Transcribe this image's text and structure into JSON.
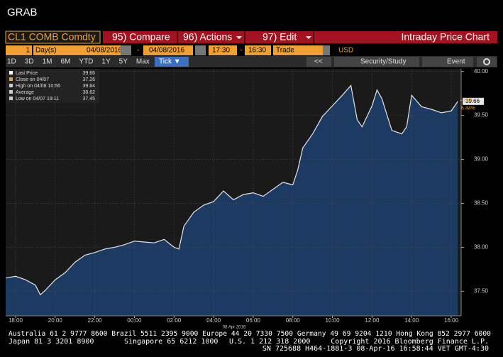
{
  "window_title": "GRAB",
  "toolbar": {
    "security": "CL1 COMB Comdty",
    "compare": "95) Compare",
    "actions": "96) Actions",
    "edit": "97) Edit",
    "chart_name": "Intraday Price Chart"
  },
  "settings": {
    "period": "1",
    "period_unit": "Day(s)",
    "start_date": "04/08/2016",
    "dash1": "-",
    "end_date": "04/08/2016",
    "start_time": "17:30",
    "dash2": "-",
    "end_time": "16:30",
    "event": "Trade",
    "currency": "USD"
  },
  "ranges": [
    "1D",
    "3D",
    "1M",
    "6M",
    "YTD",
    "1Y",
    "5Y",
    "Max"
  ],
  "tick_button": "Tick ▼",
  "right_buttons": {
    "back": "<<",
    "study": "Security/Study",
    "event": "Event"
  },
  "chart_data": {
    "type": "area",
    "legend": [
      {
        "label": "Last Price",
        "value": 39.66
      },
      {
        "label": "Close on 04/07",
        "value": 37.26
      },
      {
        "label": "High on 04/08 10:56",
        "value": 39.84
      },
      {
        "label": "Average",
        "value": 38.62
      },
      {
        "label": "Low on 04/07 19:11",
        "value": 37.45
      }
    ],
    "change_label": "+2.40",
    "change_pct_label": "6.44%",
    "date_label": "08 Apr 2016",
    "x": [
      "17:30",
      "18:00",
      "18:30",
      "19:00",
      "19:15",
      "19:30",
      "20:00",
      "20:30",
      "21:00",
      "21:30",
      "22:00",
      "22:30",
      "23:00",
      "23:30",
      "00:00",
      "00:30",
      "01:00",
      "01:30",
      "02:00",
      "02:15",
      "02:30",
      "03:00",
      "03:30",
      "04:00",
      "04:30",
      "05:00",
      "05:30",
      "06:00",
      "06:30",
      "07:00",
      "07:30",
      "08:00",
      "08:15",
      "08:30",
      "09:00",
      "09:30",
      "10:00",
      "10:30",
      "10:56",
      "11:15",
      "11:30",
      "12:00",
      "12:15",
      "12:30",
      "13:00",
      "13:30",
      "13:45",
      "14:00",
      "14:30",
      "15:00",
      "15:30",
      "16:00",
      "16:20"
    ],
    "series": [
      {
        "name": "Last Price",
        "color": "#e6e6e6",
        "area_color": "#1d3a63",
        "values": [
          37.65,
          37.67,
          37.63,
          37.57,
          37.46,
          37.51,
          37.63,
          37.71,
          37.83,
          37.91,
          37.94,
          37.98,
          38.0,
          38.03,
          38.07,
          38.06,
          38.05,
          38.09,
          38.0,
          37.98,
          38.24,
          38.4,
          38.48,
          38.52,
          38.64,
          38.54,
          38.6,
          38.62,
          38.58,
          38.66,
          38.74,
          38.71,
          38.88,
          39.13,
          39.29,
          39.49,
          39.61,
          39.73,
          39.84,
          39.45,
          39.37,
          39.61,
          39.79,
          39.69,
          39.33,
          39.29,
          39.37,
          39.73,
          39.6,
          39.57,
          39.53,
          39.55,
          39.66
        ]
      }
    ],
    "xlim": [
      "17:30",
      "16:30"
    ],
    "xticks": [
      "18:00",
      "20:00",
      "22:00",
      "00:00",
      "02:00",
      "04:00",
      "06:00",
      "08:00",
      "10:00",
      "12:00",
      "14:00",
      "16:00"
    ],
    "ylim": [
      37.22,
      40.03
    ],
    "yticks": [
      {
        "value": 37.5,
        "label": "37.50"
      },
      {
        "value": 38,
        "label": "38.00"
      },
      {
        "value": 38.5,
        "label": "38.50"
      },
      {
        "value": 39,
        "label": "39.00"
      },
      {
        "value": 39.5,
        "label": "39.50"
      },
      {
        "value": 40,
        "label": "40.00"
      }
    ],
    "grid": true
  },
  "footer": {
    "line1": "Australia 61 2 9777 8600 Brazil 5511 2395 9000 Europe 44 20 7330 7500 Germany 49 69 9204 1210 Hong Kong 852 2977 6000",
    "line2_left": "Japan 81 3 3201 8900",
    "line2_mid1": "Singapore 65 6212 1000",
    "line2_mid2": "U.S. 1 212 318 2000",
    "line2_right": "Copyright 2016 Bloomberg Finance L.P.",
    "line3": "SN 725688 H464-1881-3 08-Apr-16 16:58:44 VET  GMT-4:30"
  }
}
